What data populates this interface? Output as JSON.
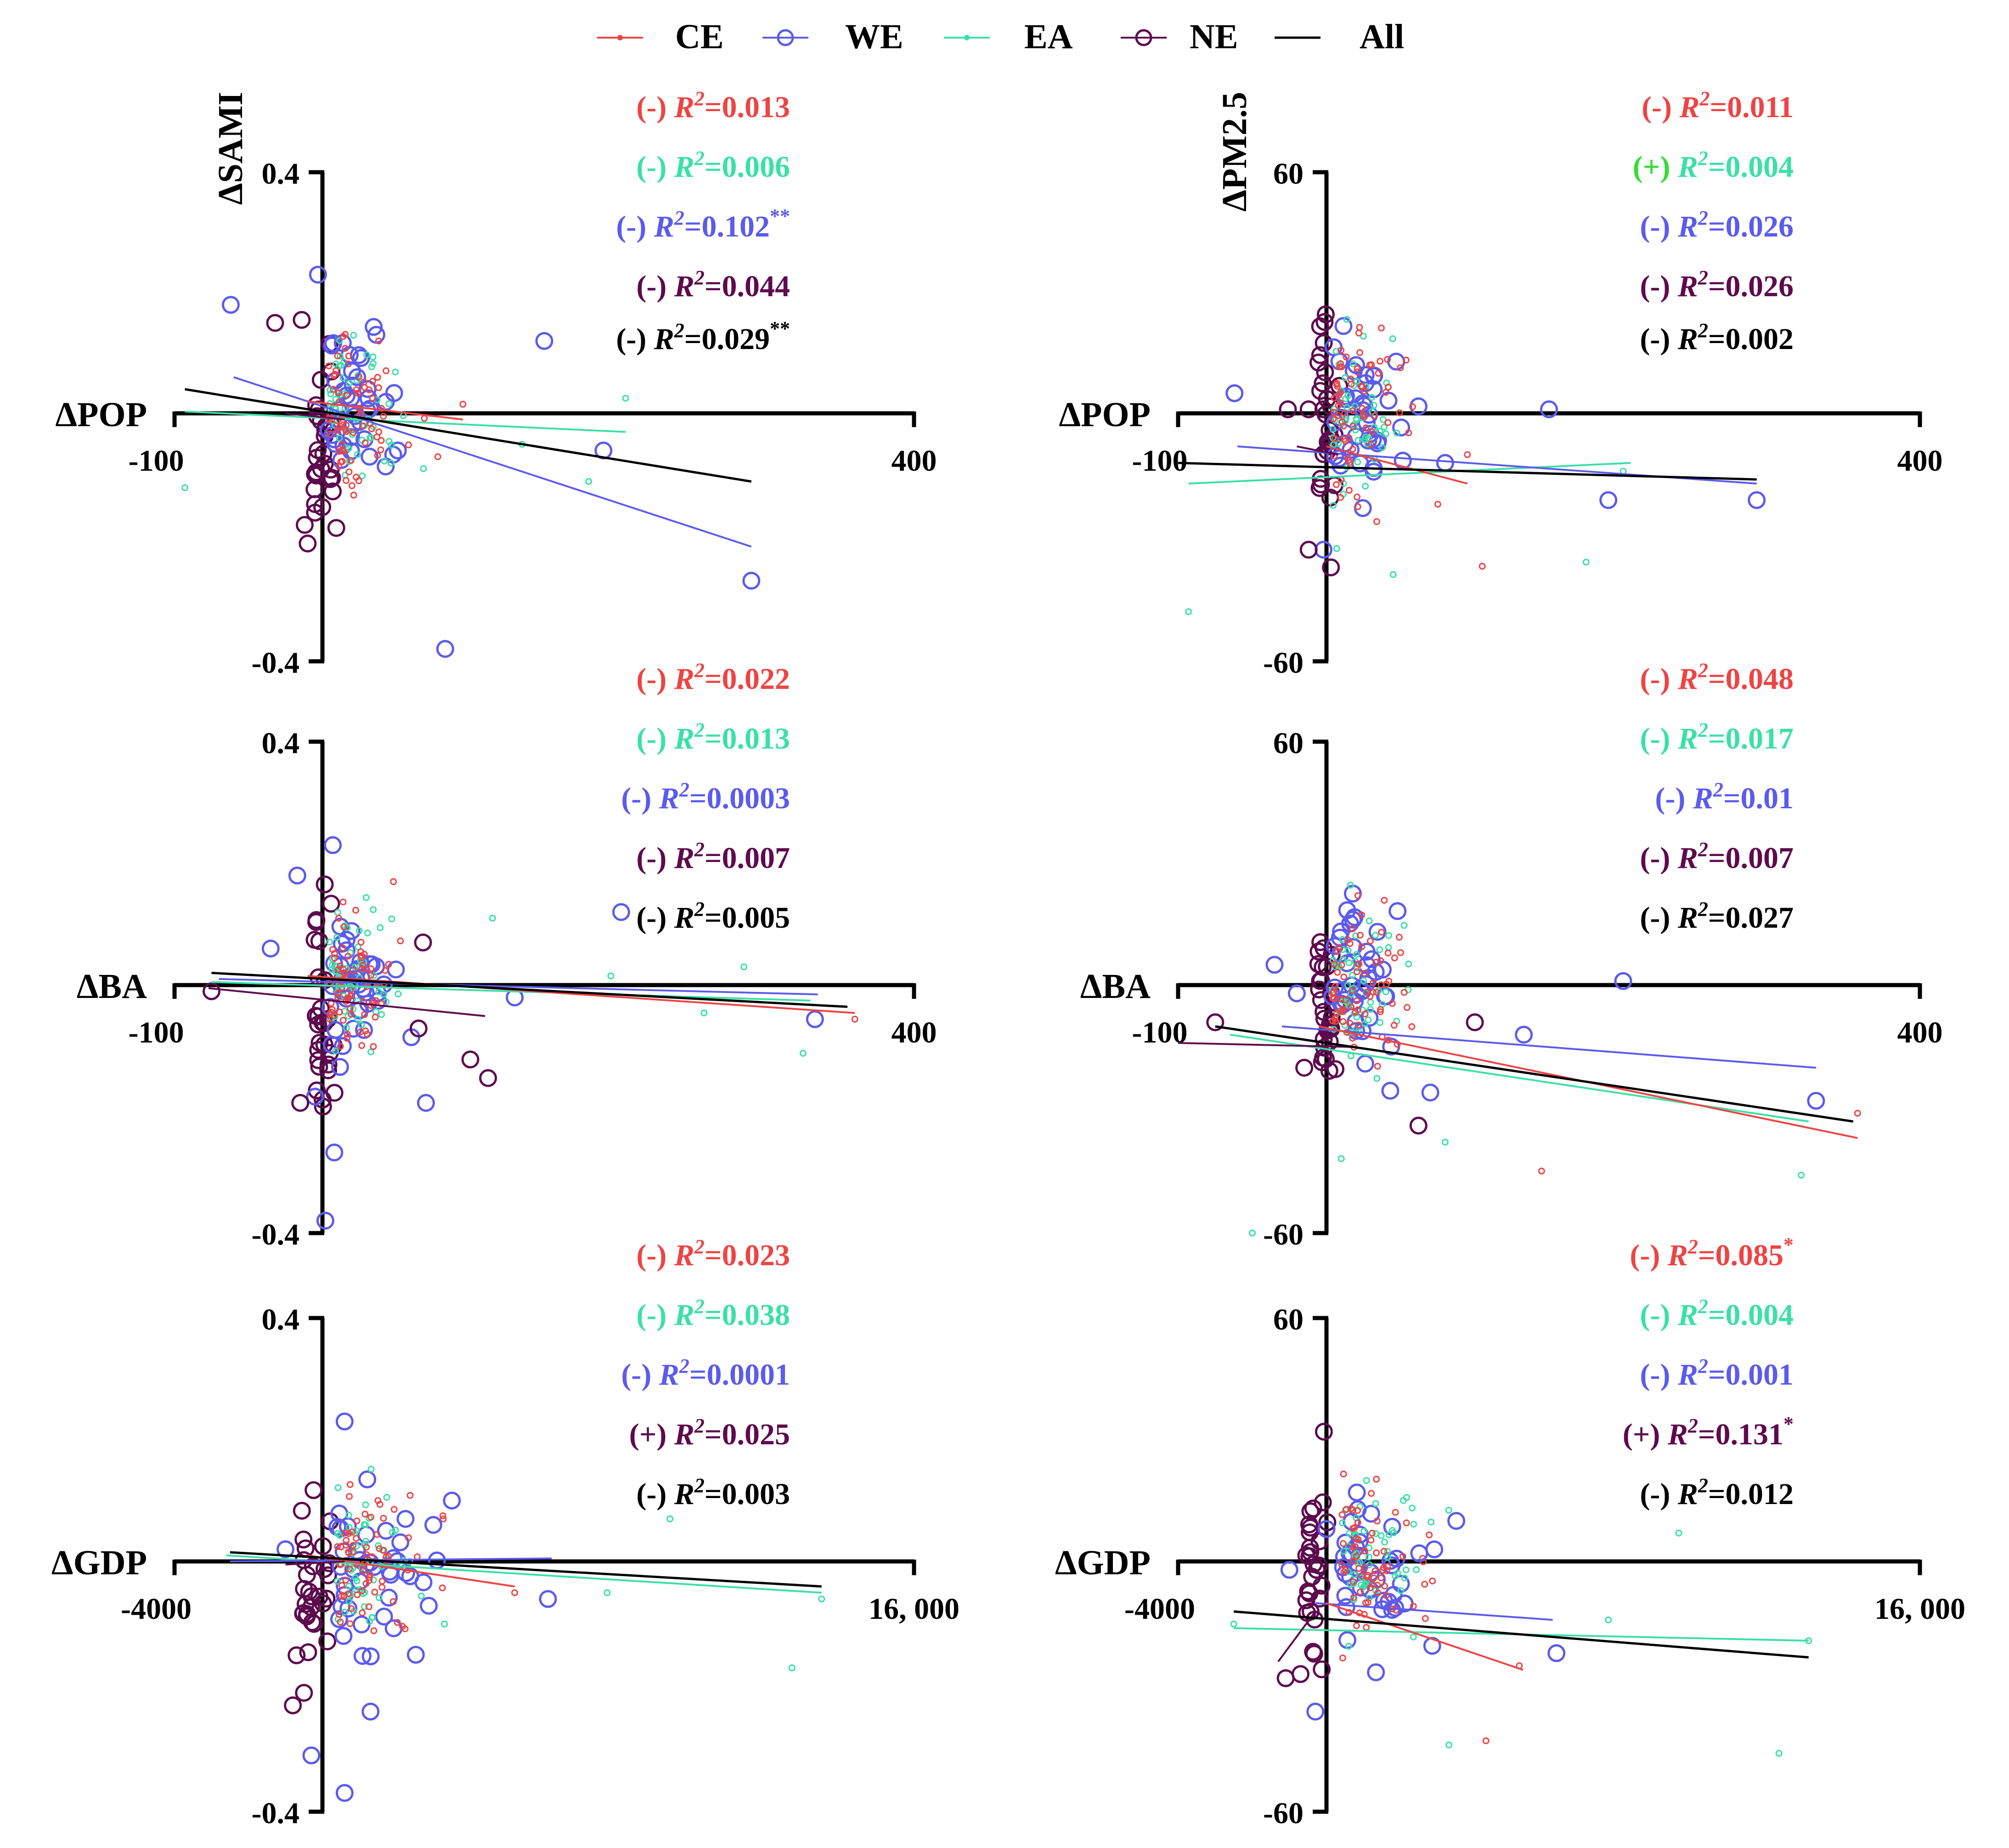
{
  "colors": {
    "CE": "#ee4444",
    "WE": "#5b5bee",
    "EA": "#3be0a6",
    "NE": "#5e0a4e",
    "All": "#000000",
    "plus_EA": "#33dd33"
  },
  "legend": [
    {
      "key": "CE",
      "label": "CE"
    },
    {
      "key": "WE",
      "label": "WE"
    },
    {
      "key": "EA",
      "label": "EA"
    },
    {
      "key": "NE",
      "label": "NE"
    },
    {
      "key": "All",
      "label": "All"
    }
  ],
  "chart_data": [
    {
      "type": "scatter",
      "id": "sami-pop",
      "col": 0,
      "row": 0,
      "ylabel": "ΔSAMI",
      "xlabel": "ΔPOP",
      "xlim": [
        -100,
        400
      ],
      "ylim": [
        -0.4,
        0.4
      ],
      "xticks": [
        "-100",
        "400"
      ],
      "yticks": [
        "0.4",
        "-0.4"
      ],
      "stats": [
        {
          "key": "CE",
          "sign": "(-)",
          "r2": "=0.013",
          "sig": ""
        },
        {
          "key": "EA",
          "sign": "(-)",
          "r2": "=0.006",
          "sig": ""
        },
        {
          "key": "WE",
          "sign": "(-)",
          "r2": "=0.102",
          "sig": "**"
        },
        {
          "key": "NE",
          "sign": "(-)",
          "r2": "=0.044",
          "sig": ""
        },
        {
          "key": "All",
          "sign": "(-)",
          "r2": "=0.029",
          "sig": "**"
        }
      ],
      "lines": {
        "CE": [
          [
            -10,
            0.02
          ],
          [
            95,
            -0.01
          ]
        ],
        "EA": [
          [
            -93,
            0.003
          ],
          [
            205,
            -0.03
          ]
        ],
        "WE": [
          [
            -60,
            0.06
          ],
          [
            290,
            -0.215
          ]
        ],
        "NE": [
          [
            -25,
            0.0
          ],
          [
            15,
            -0.01
          ]
        ],
        "All": [
          [
            -93,
            0.04
          ],
          [
            290,
            -0.11
          ]
        ]
      },
      "outliers": {
        "WE": [
          [
            -62,
            0.18
          ],
          [
            150,
            0.12
          ],
          [
            190,
            -0.06
          ],
          [
            290,
            -0.27
          ],
          [
            83,
            -0.38
          ],
          [
            20,
            0.07
          ],
          [
            -3,
            0.23
          ]
        ],
        "NE": [
          [
            -32,
            0.15
          ],
          [
            -14,
            0.155
          ],
          [
            -12,
            -0.18
          ],
          [
            -10,
            -0.21
          ]
        ],
        "EA": [
          [
            205,
            0.025
          ],
          [
            -93,
            -0.12
          ],
          [
            180,
            -0.11
          ],
          [
            135,
            -0.05
          ]
        ],
        "CE": [
          [
            38,
            0.12
          ],
          [
            95,
            0.015
          ],
          [
            78,
            -0.07
          ]
        ]
      },
      "seed": 11
    },
    {
      "type": "scatter",
      "id": "pm-pop",
      "col": 1,
      "row": 0,
      "ylabel": "ΔPM2.5",
      "xlabel": "ΔPOP",
      "xlim": [
        -100,
        400
      ],
      "ylim": [
        -60,
        60
      ],
      "xticks": [
        "-100",
        "400"
      ],
      "yticks": [
        "60",
        "-60"
      ],
      "stats": [
        {
          "key": "CE",
          "sign": "(-)",
          "r2": "=0.011",
          "sig": ""
        },
        {
          "key": "EA",
          "sign": "(+)",
          "r2": "=0.004",
          "sig": "",
          "signColor": "plus_EA"
        },
        {
          "key": "WE",
          "sign": "(-)",
          "r2": "=0.026",
          "sig": ""
        },
        {
          "key": "NE",
          "sign": "(-)",
          "r2": "=0.026",
          "sig": ""
        },
        {
          "key": "All",
          "sign": "(-)",
          "r2": "=0.002",
          "sig": ""
        }
      ],
      "lines": {
        "CE": [
          [
            0,
            -8
          ],
          [
            95,
            -17
          ]
        ],
        "EA": [
          [
            -93,
            -17
          ],
          [
            205,
            -12
          ]
        ],
        "WE": [
          [
            -60,
            -8
          ],
          [
            290,
            -17
          ]
        ],
        "NE": [
          [
            -20,
            -8
          ],
          [
            8,
            -10
          ]
        ],
        "All": [
          [
            -100,
            -12
          ],
          [
            290,
            -16
          ]
        ]
      },
      "outliers": {
        "WE": [
          [
            -62,
            5
          ],
          [
            20,
            12
          ],
          [
            150,
            1
          ],
          [
            190,
            -21
          ],
          [
            290,
            -21
          ],
          [
            80,
            -12
          ],
          [
            -2,
            -33
          ]
        ],
        "NE": [
          [
            -26,
            1
          ],
          [
            -12,
            1
          ],
          [
            -12,
            -33
          ]
        ],
        "EA": [
          [
            -93,
            -48
          ],
          [
            175,
            -36
          ],
          [
            200,
            -14
          ],
          [
            45,
            -39
          ]
        ],
        "CE": [
          [
            95,
            -10
          ],
          [
            105,
            -37
          ],
          [
            75,
            -22
          ]
        ]
      },
      "seed": 23
    },
    {
      "type": "scatter",
      "id": "sami-ba",
      "col": 0,
      "row": 1,
      "ylabel": "",
      "xlabel": "ΔBA",
      "xlim": [
        -100,
        400
      ],
      "ylim": [
        -0.4,
        0.4
      ],
      "xticks": [
        "-100",
        "400"
      ],
      "yticks": [
        "0.4",
        "-0.4"
      ],
      "stats": [
        {
          "key": "CE",
          "sign": "(-)",
          "r2": "=0.022",
          "sig": ""
        },
        {
          "key": "EA",
          "sign": "(-)",
          "r2": "=0.013",
          "sig": ""
        },
        {
          "key": "WE",
          "sign": "(-)",
          "r2": "=0.0003",
          "sig": ""
        },
        {
          "key": "NE",
          "sign": "(-)",
          "r2": "=0.007",
          "sig": ""
        },
        {
          "key": "All",
          "sign": "(-)",
          "r2": "=0.005",
          "sig": ""
        }
      ],
      "lines": {
        "CE": [
          [
            -10,
            0.015
          ],
          [
            360,
            -0.045
          ]
        ],
        "EA": [
          [
            -75,
            0.005
          ],
          [
            330,
            -0.025
          ]
        ],
        "WE": [
          [
            -70,
            0.01
          ],
          [
            335,
            -0.015
          ]
        ],
        "NE": [
          [
            -77,
            -0.005
          ],
          [
            110,
            -0.05
          ]
        ],
        "All": [
          [
            -75,
            0.02
          ],
          [
            355,
            -0.035
          ]
        ]
      },
      "outliers": {
        "WE": [
          [
            -17,
            0.18
          ],
          [
            7,
            0.23
          ],
          [
            202,
            0.12
          ],
          [
            333,
            -0.055
          ],
          [
            130,
            -0.02
          ],
          [
            70,
            -0.19
          ],
          [
            8,
            -0.27
          ],
          [
            2,
            -0.38
          ],
          [
            -35,
            0.06
          ],
          [
            -5,
            -0.18
          ]
        ],
        "NE": [
          [
            -75,
            -0.01
          ],
          [
            100,
            -0.12
          ],
          [
            112,
            -0.15
          ],
          [
            65,
            -0.07
          ],
          [
            -15,
            -0.19
          ],
          [
            68,
            0.07
          ]
        ],
        "EA": [
          [
            325,
            -0.11
          ],
          [
            115,
            0.11
          ],
          [
            258,
            -0.045
          ],
          [
            195,
            0.015
          ],
          [
            285,
            0.03
          ]
        ],
        "CE": [
          [
            360,
            -0.055
          ],
          [
            48,
            0.17
          ]
        ]
      },
      "seed": 37
    },
    {
      "type": "scatter",
      "id": "pm-ba",
      "col": 1,
      "row": 1,
      "ylabel": "",
      "xlabel": "ΔBA",
      "xlim": [
        -100,
        400
      ],
      "ylim": [
        -60,
        60
      ],
      "xticks": [
        "-100",
        "400"
      ],
      "yticks": [
        "60",
        "-60"
      ],
      "stats": [
        {
          "key": "CE",
          "sign": "(-)",
          "r2": "=0.048",
          "sig": ""
        },
        {
          "key": "EA",
          "sign": "(-)",
          "r2": "=0.017",
          "sig": ""
        },
        {
          "key": "WE",
          "sign": "(-)",
          "r2": "=0.01",
          "sig": ""
        },
        {
          "key": "NE",
          "sign": "(-)",
          "r2": "=0.007",
          "sig": ""
        },
        {
          "key": "All",
          "sign": "(-)",
          "r2": "=0.027",
          "sig": ""
        }
      ],
      "lines": {
        "CE": [
          [
            -5,
            -10
          ],
          [
            358,
            -37
          ]
        ],
        "EA": [
          [
            -65,
            -12
          ],
          [
            325,
            -33
          ]
        ],
        "WE": [
          [
            -30,
            -10
          ],
          [
            330,
            -20
          ]
        ],
        "NE": [
          [
            -100,
            -14
          ],
          [
            20,
            -15
          ]
        ],
        "All": [
          [
            -75,
            -10
          ],
          [
            355,
            -33
          ]
        ]
      },
      "outliers": {
        "WE": [
          [
            -35,
            5
          ],
          [
            200,
            1
          ],
          [
            133,
            -12
          ],
          [
            330,
            -28
          ],
          [
            -20,
            -2
          ],
          [
            70,
            -26
          ]
        ],
        "NE": [
          [
            -75,
            -9
          ],
          [
            100,
            -9
          ],
          [
            62,
            -34
          ],
          [
            -15,
            -20
          ]
        ],
        "EA": [
          [
            -50,
            -60
          ],
          [
            320,
            -46
          ],
          [
            10,
            -42
          ],
          [
            80,
            -38
          ]
        ],
        "CE": [
          [
            145,
            -45
          ],
          [
            50,
            8
          ],
          [
            358,
            -31
          ]
        ]
      },
      "seed": 53
    },
    {
      "type": "scatter",
      "id": "sami-gdp",
      "col": 0,
      "row": 2,
      "ylabel": "",
      "xlabel": "ΔGDP",
      "xlim": [
        -4000,
        16000
      ],
      "ylim": [
        -0.4,
        0.4
      ],
      "xticks": [
        "-4000",
        "16, 000"
      ],
      "yticks": [
        "0.4",
        "-0.4"
      ],
      "stats": [
        {
          "key": "CE",
          "sign": "(-)",
          "r2": "=0.023",
          "sig": ""
        },
        {
          "key": "EA",
          "sign": "(-)",
          "r2": "=0.038",
          "sig": ""
        },
        {
          "key": "WE",
          "sign": "(-)",
          "r2": "=0.0001",
          "sig": ""
        },
        {
          "key": "NE",
          "sign": "(+)",
          "r2": "=0.025",
          "sig": ""
        },
        {
          "key": "All",
          "sign": "(-)",
          "r2": "=0.003",
          "sig": ""
        }
      ],
      "lines": {
        "CE": [
          [
            -400,
            0.01
          ],
          [
            5200,
            -0.04
          ]
        ],
        "EA": [
          [
            -2600,
            0.01
          ],
          [
            13500,
            -0.05
          ]
        ],
        "WE": [
          [
            -2500,
            0.0
          ],
          [
            6200,
            0.005
          ]
        ],
        "NE": [
          [
            -1000,
            -0.005
          ],
          [
            600,
            0.0
          ]
        ],
        "All": [
          [
            -2500,
            0.015
          ],
          [
            13500,
            -0.04
          ]
        ]
      },
      "outliers": {
        "WE": [
          [
            600,
            0.23
          ],
          [
            3500,
            0.1
          ],
          [
            3000,
            0.06
          ],
          [
            6100,
            -0.06
          ],
          [
            1300,
            -0.24
          ],
          [
            600,
            -0.37
          ],
          [
            -300,
            -0.31
          ],
          [
            -1000,
            0.02
          ]
        ],
        "NE": [
          [
            -800,
            -0.23
          ],
          [
            -500,
            -0.21
          ],
          [
            -700,
            -0.15
          ]
        ],
        "EA": [
          [
            13500,
            -0.06
          ],
          [
            12700,
            -0.17
          ],
          [
            9400,
            0.07
          ],
          [
            7700,
            -0.05
          ],
          [
            3300,
            -0.1
          ]
        ],
        "CE": [
          [
            5200,
            -0.05
          ],
          [
            1500,
            0.1
          ]
        ]
      },
      "seed": 71
    },
    {
      "type": "scatter",
      "id": "pm-gdp",
      "col": 1,
      "row": 2,
      "ylabel": "",
      "xlabel": "ΔGDP",
      "xlim": [
        -4000,
        16000
      ],
      "ylim": [
        -60,
        60
      ],
      "xticks": [
        "-4000",
        "16, 000"
      ],
      "yticks": [
        "60",
        "-60"
      ],
      "stats": [
        {
          "key": "CE",
          "sign": "(-)",
          "r2": "=0.085",
          "sig": "*"
        },
        {
          "key": "EA",
          "sign": "(-)",
          "r2": "=0.004",
          "sig": ""
        },
        {
          "key": "WE",
          "sign": "(-)",
          "r2": "=0.001",
          "sig": ""
        },
        {
          "key": "NE",
          "sign": "(+)",
          "r2": "=0.131",
          "sig": "*"
        },
        {
          "key": "All",
          "sign": "(-)",
          "r2": "=0.012",
          "sig": ""
        }
      ],
      "lines": {
        "CE": [
          [
            0,
            -10
          ],
          [
            5300,
            -26
          ]
        ],
        "EA": [
          [
            -2500,
            -16
          ],
          [
            13000,
            -19
          ]
        ],
        "WE": [
          [
            -300,
            -10
          ],
          [
            6100,
            -14
          ]
        ],
        "NE": [
          [
            -1300,
            -24
          ],
          [
            -300,
            -12
          ]
        ],
        "All": [
          [
            -2500,
            -12
          ],
          [
            13000,
            -23
          ]
        ]
      },
      "outliers": {
        "WE": [
          [
            3500,
            10
          ],
          [
            2500,
            2
          ],
          [
            6200,
            -22
          ],
          [
            -300,
            -36
          ],
          [
            -1000,
            -2
          ],
          [
            0,
            8
          ]
        ],
        "NE": [
          [
            -700,
            -27
          ],
          [
            -1100,
            -28
          ]
        ],
        "EA": [
          [
            9500,
            7
          ],
          [
            12200,
            -46
          ],
          [
            7600,
            -14
          ],
          [
            3300,
            -44
          ],
          [
            -2500,
            -15
          ],
          [
            13000,
            -19
          ]
        ],
        "CE": [
          [
            4300,
            -43
          ],
          [
            5200,
            -25
          ]
        ]
      },
      "seed": 97
    }
  ]
}
